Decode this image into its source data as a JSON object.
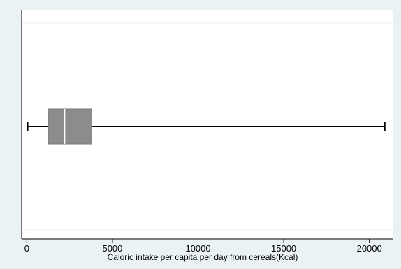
{
  "chart_data": {
    "type": "boxplot",
    "orientation": "horizontal",
    "xlabel": "Caloric intake per capita per day from cereals(Kcal)",
    "xlim": [
      -300,
      21400
    ],
    "x_ticks": [
      0,
      5000,
      10000,
      15000,
      20000
    ],
    "x_tick_labels": [
      "0",
      "5000",
      "10000",
      "15000",
      "20000"
    ],
    "box": {
      "whisker_low": 50,
      "q1": 1250,
      "median": 2200,
      "q3": 3800,
      "whisker_high": 20900
    },
    "grid": "horizontal",
    "colors": {
      "outer_background": "#eaf2f3",
      "plot_background": "#ffffff",
      "box_fill": "#8c8c8c",
      "median_line": "#ffffff",
      "whisker": "#000000",
      "grid": "#eaf2f3"
    }
  }
}
